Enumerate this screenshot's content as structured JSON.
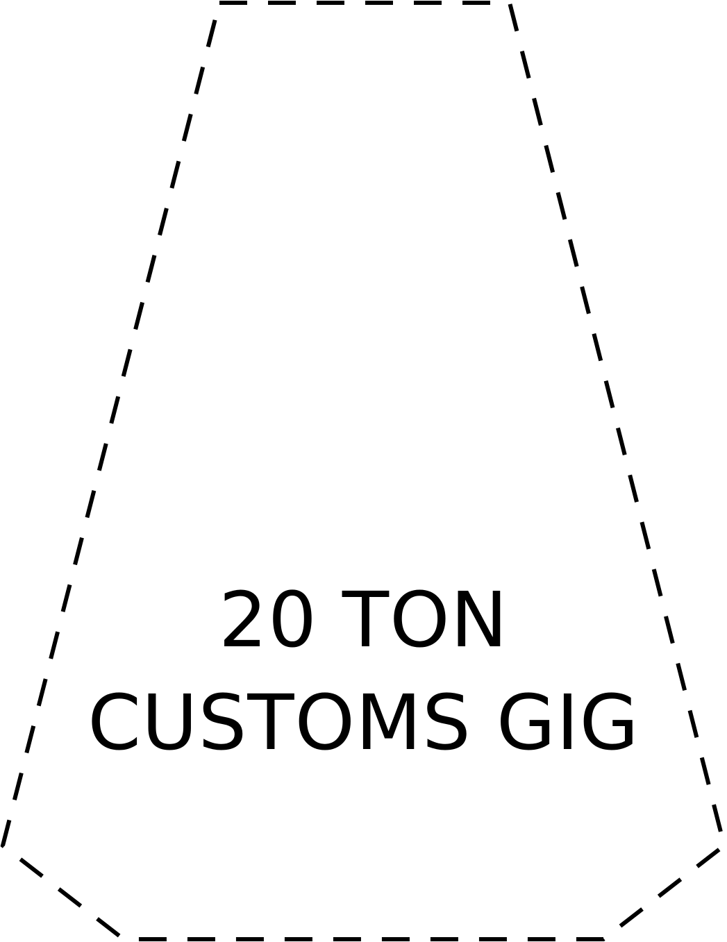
{
  "label": {
    "line1": "20 TON",
    "line2": "CUSTOMS GIG"
  },
  "colors": {
    "background": "#ffffff",
    "stroke": "#000000"
  }
}
